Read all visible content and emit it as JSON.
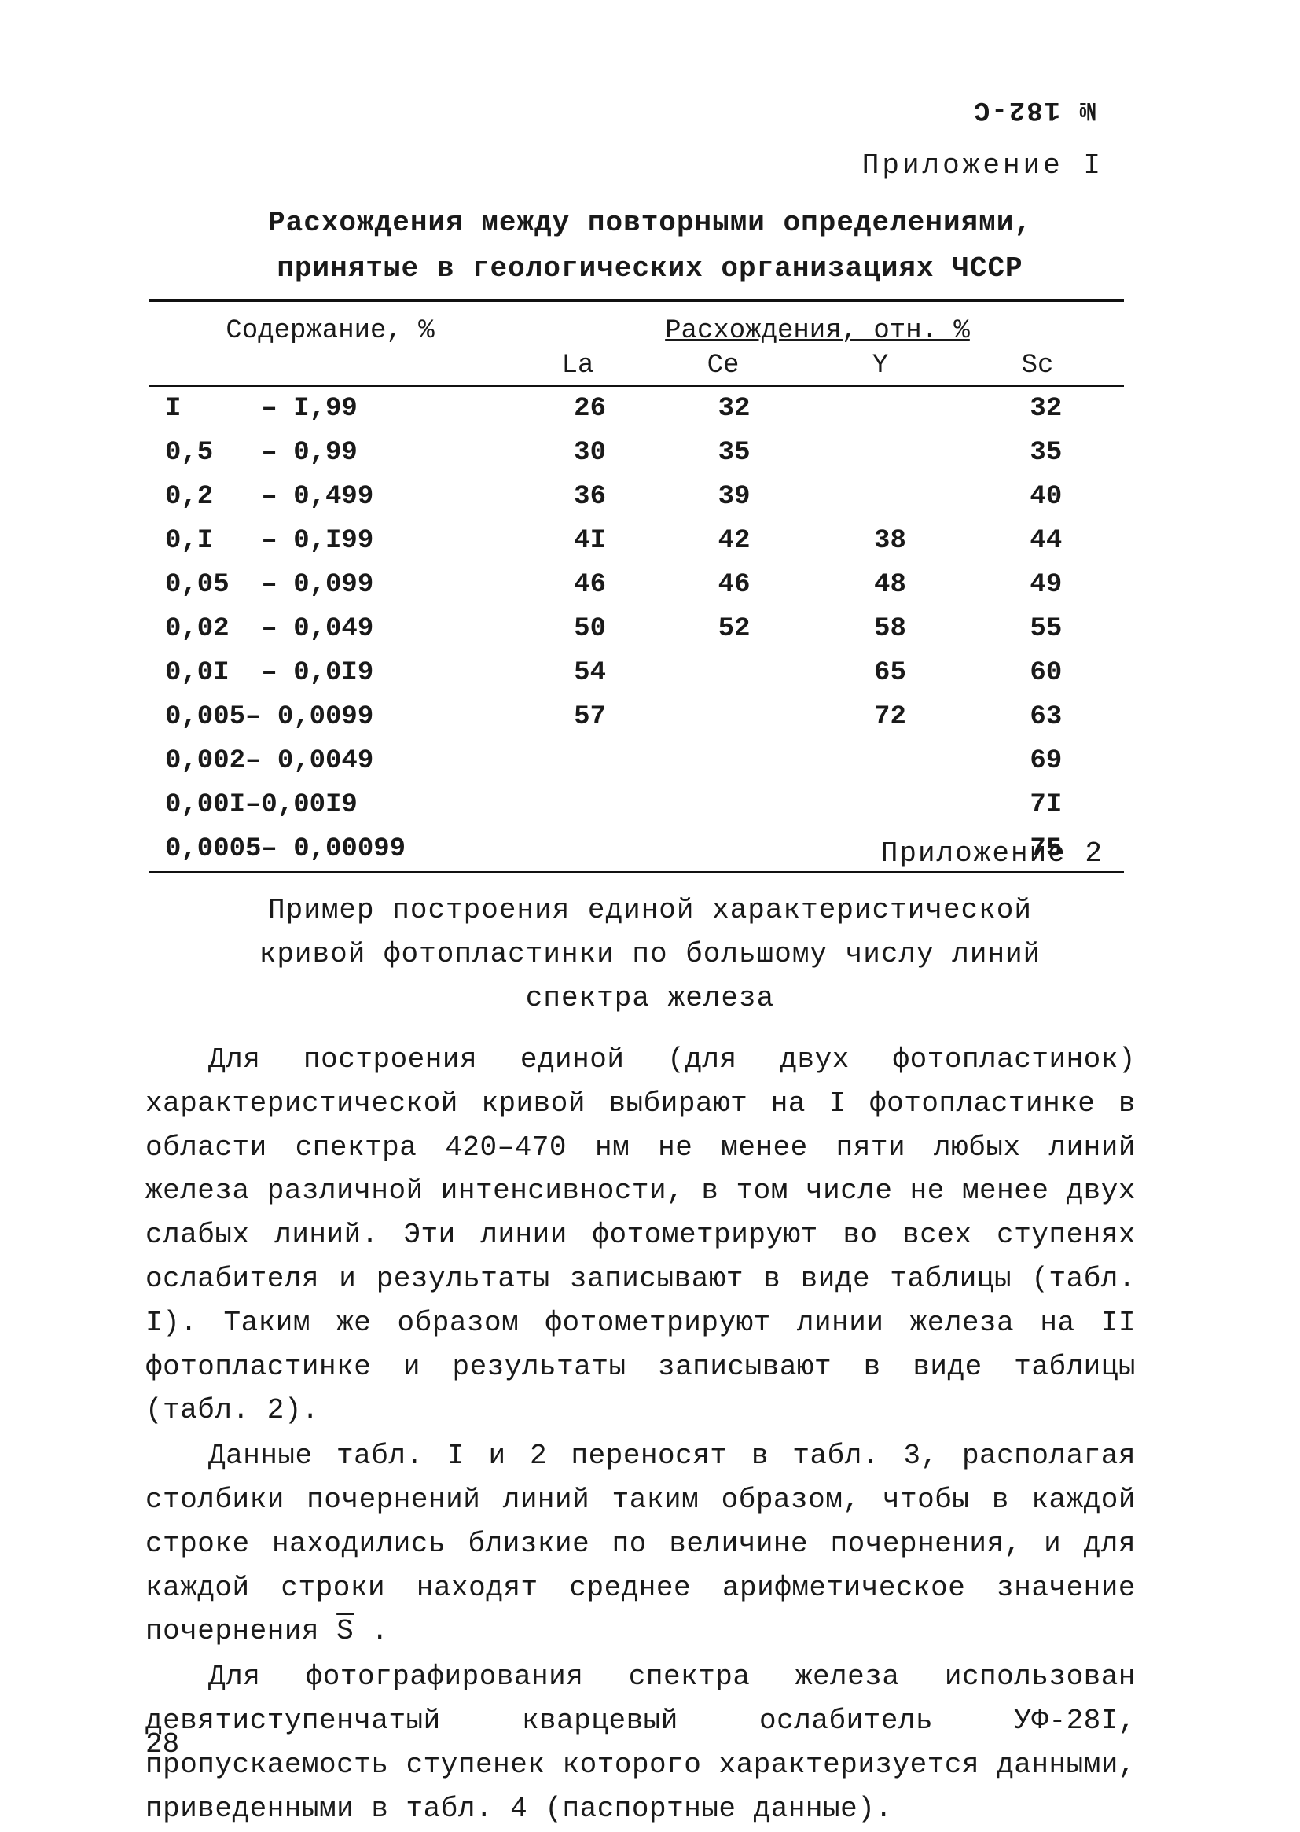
{
  "doc_code_mirrored": "№ 182-С",
  "appendix1_label": "Приложение I",
  "section1_title_l1": "Расхождения между повторными определениями,",
  "section1_title_l2": "принятые в геологических организациях ЧССР",
  "table1": {
    "col_left_header": "Содержание, %",
    "col_right_header": "Расхождения, отн. %",
    "subheaders": {
      "la": "La",
      "ce": "Ce",
      "y": "Y",
      "sc": "Sc"
    },
    "rows": [
      {
        "range": "I     – I,99",
        "la": "26",
        "ce": "32",
        "y": "",
        "sc": "32"
      },
      {
        "range": "0,5   – 0,99",
        "la": "30",
        "ce": "35",
        "y": "",
        "sc": "35"
      },
      {
        "range": "0,2   – 0,499",
        "la": "36",
        "ce": "39",
        "y": "",
        "sc": "40"
      },
      {
        "range": "0,I   – 0,I99",
        "la": "4I",
        "ce": "42",
        "y": "38",
        "sc": "44"
      },
      {
        "range": "0,05  – 0,099",
        "la": "46",
        "ce": "46",
        "y": "48",
        "sc": "49"
      },
      {
        "range": "0,02  – 0,049",
        "la": "50",
        "ce": "52",
        "y": "58",
        "sc": "55"
      },
      {
        "range": "0,0I  – 0,0I9",
        "la": "54",
        "ce": "",
        "y": "65",
        "sc": "60"
      },
      {
        "range": "0,005– 0,0099",
        "la": "57",
        "ce": "",
        "y": "72",
        "sc": "63"
      },
      {
        "range": "0,002– 0,0049",
        "la": "",
        "ce": "",
        "y": "",
        "sc": "69"
      },
      {
        "range": "0,00I–0,00I9",
        "la": "",
        "ce": "",
        "y": "",
        "sc": "7I"
      },
      {
        "range": "0,0005– 0,00099",
        "la": "",
        "ce": "",
        "y": "",
        "sc": "75"
      }
    ]
  },
  "appendix2_label": "Приложение 2",
  "section2_title_l1": "Пример построения единой характеристической",
  "section2_title_l2": "кривой фотопластинки по большому числу линий",
  "section2_title_l3": "спектра железа",
  "para1": "Для построения единой (для двух фотопластинок) характе­ристической кривой выбирают на I фотопластинке в области спек­тра 420–470 нм не менее пяти любых линий железа различной интенсивности, в том числе не менее двух слабых линий. Эти линии фотометрируют во всех ступенях ослабителя и результаты записывают в виде таблицы (табл. I). Таким же образом фото­метрируют линии железа на II фотопластинке и результаты запи­сывают в виде таблицы (табл. 2).",
  "para2_a": "Данные табл. I и 2 переносят в табл. 3, располагая стол­бики почернений линий таким образом, чтобы в каждой строке находились близкие по величине почернения, и для каждой стро­ки находят среднее арифметическое значение почернения ",
  "para2_sbar": "S",
  "para2_b": " .",
  "para3": "Для фотографирования спектра железа использован девяти­ступенчатый кварцевый ослабитель УФ-28I, пропускаемость сту­пенек которого характеризуется данными, приведенными в табл. 4 (паспортные данные).",
  "page_number": "28"
}
